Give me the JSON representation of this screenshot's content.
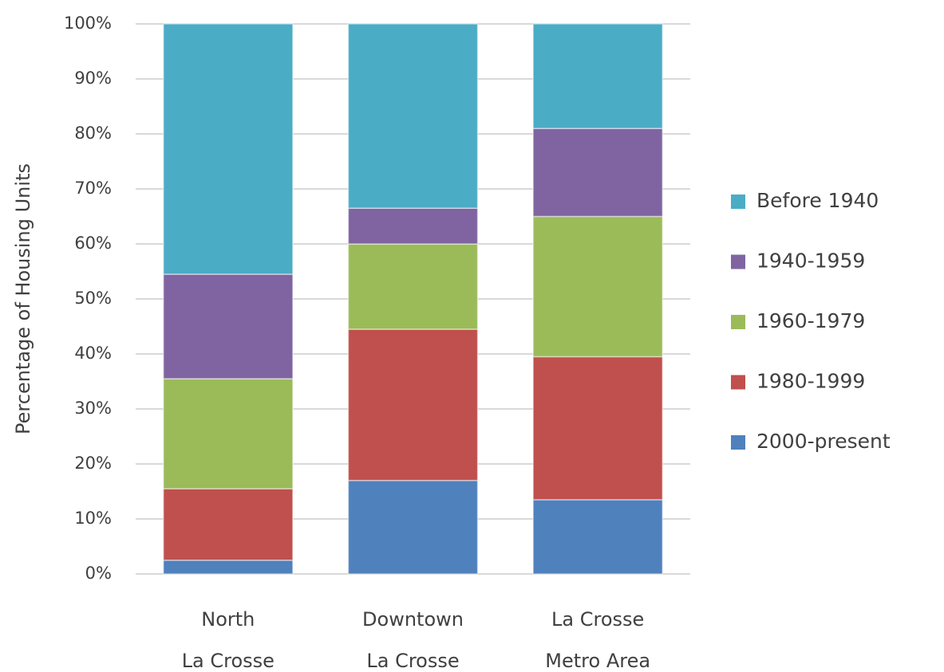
{
  "chart_data": {
    "type": "stacked_bar",
    "y_label": "Percentage of Housing Units",
    "categories": [
      [
        "North",
        "La Crosse"
      ],
      [
        "Downtown",
        "La Crosse"
      ],
      [
        "La Crosse",
        "Metro Area"
      ]
    ],
    "series": [
      {
        "name": "2000-present",
        "color": "#4f81bd",
        "values": [
          2.5,
          17,
          13.5
        ]
      },
      {
        "name": "1980-1999",
        "color": "#c0504d",
        "values": [
          13,
          27.5,
          26
        ]
      },
      {
        "name": "1960-1979",
        "color": "#9bbb59",
        "values": [
          20,
          15.5,
          25.5
        ]
      },
      {
        "name": "1940-1959",
        "color": "#8064a2",
        "values": [
          19,
          6.5,
          16
        ]
      },
      {
        "name": "Before 1940",
        "color": "#4bacc6",
        "values": [
          45.5,
          33.5,
          19
        ]
      }
    ],
    "ylim": [
      0,
      100
    ],
    "yticks": [
      {
        "value": 0,
        "label": "0%"
      },
      {
        "value": 10,
        "label": "10%"
      },
      {
        "value": 20,
        "label": "20%"
      },
      {
        "value": 30,
        "label": "30%"
      },
      {
        "value": 40,
        "label": "40%"
      },
      {
        "value": 50,
        "label": "50%"
      },
      {
        "value": 60,
        "label": "60%"
      },
      {
        "value": 70,
        "label": "70%"
      },
      {
        "value": 80,
        "label": "80%"
      },
      {
        "value": 90,
        "label": "90%"
      },
      {
        "value": 100,
        "label": "100%"
      }
    ],
    "grid": true,
    "legend": "right"
  }
}
